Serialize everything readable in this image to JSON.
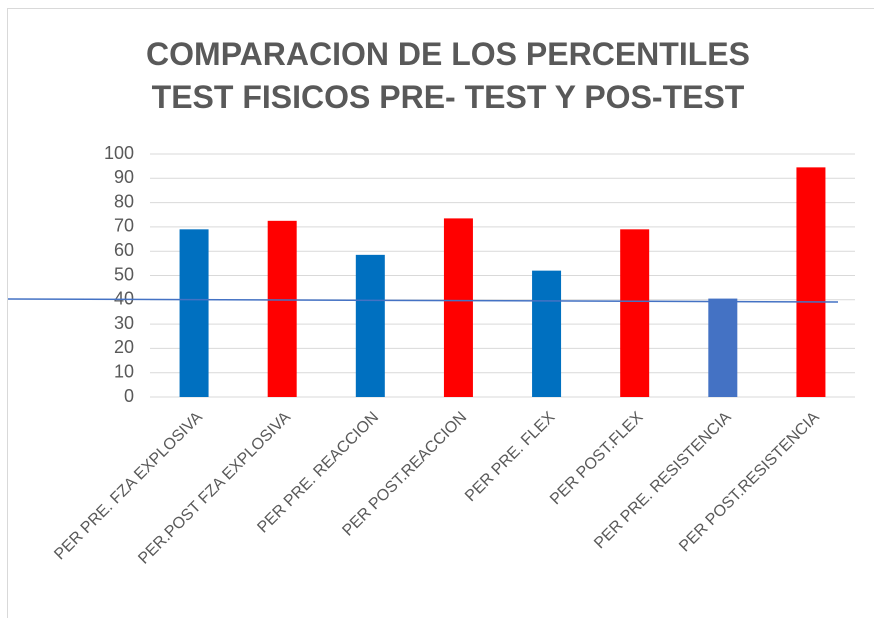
{
  "chart_data": {
    "type": "bar",
    "title": "COMPARACION DE LOS PERCENTILES TEST FISICOS PRE- TEST Y POS-TEST",
    "categories": [
      "PER PRE. FZA EXPLOSIVA",
      "PER.POST FZA EXPLOSIVA",
      "PER PRE. REACCION",
      "PER POST.REACCION",
      "PER PRE. FLEX",
      "PER POST.FLEX",
      "PER PRE. RESISTENCIA",
      "PER POST.RESISTENCIA"
    ],
    "values": [
      69,
      72.5,
      58.5,
      73.5,
      52,
      69,
      40.5,
      94.5
    ],
    "colors": [
      "#0070c0",
      "#ff0000",
      "#0070c0",
      "#ff0000",
      "#0070c0",
      "#ff0000",
      "#4472c4",
      "#ff0000"
    ],
    "ylim": [
      0,
      100
    ],
    "yticks": [
      0,
      10,
      20,
      30,
      40,
      50,
      60,
      70,
      80,
      90,
      100
    ],
    "grid": true
  }
}
